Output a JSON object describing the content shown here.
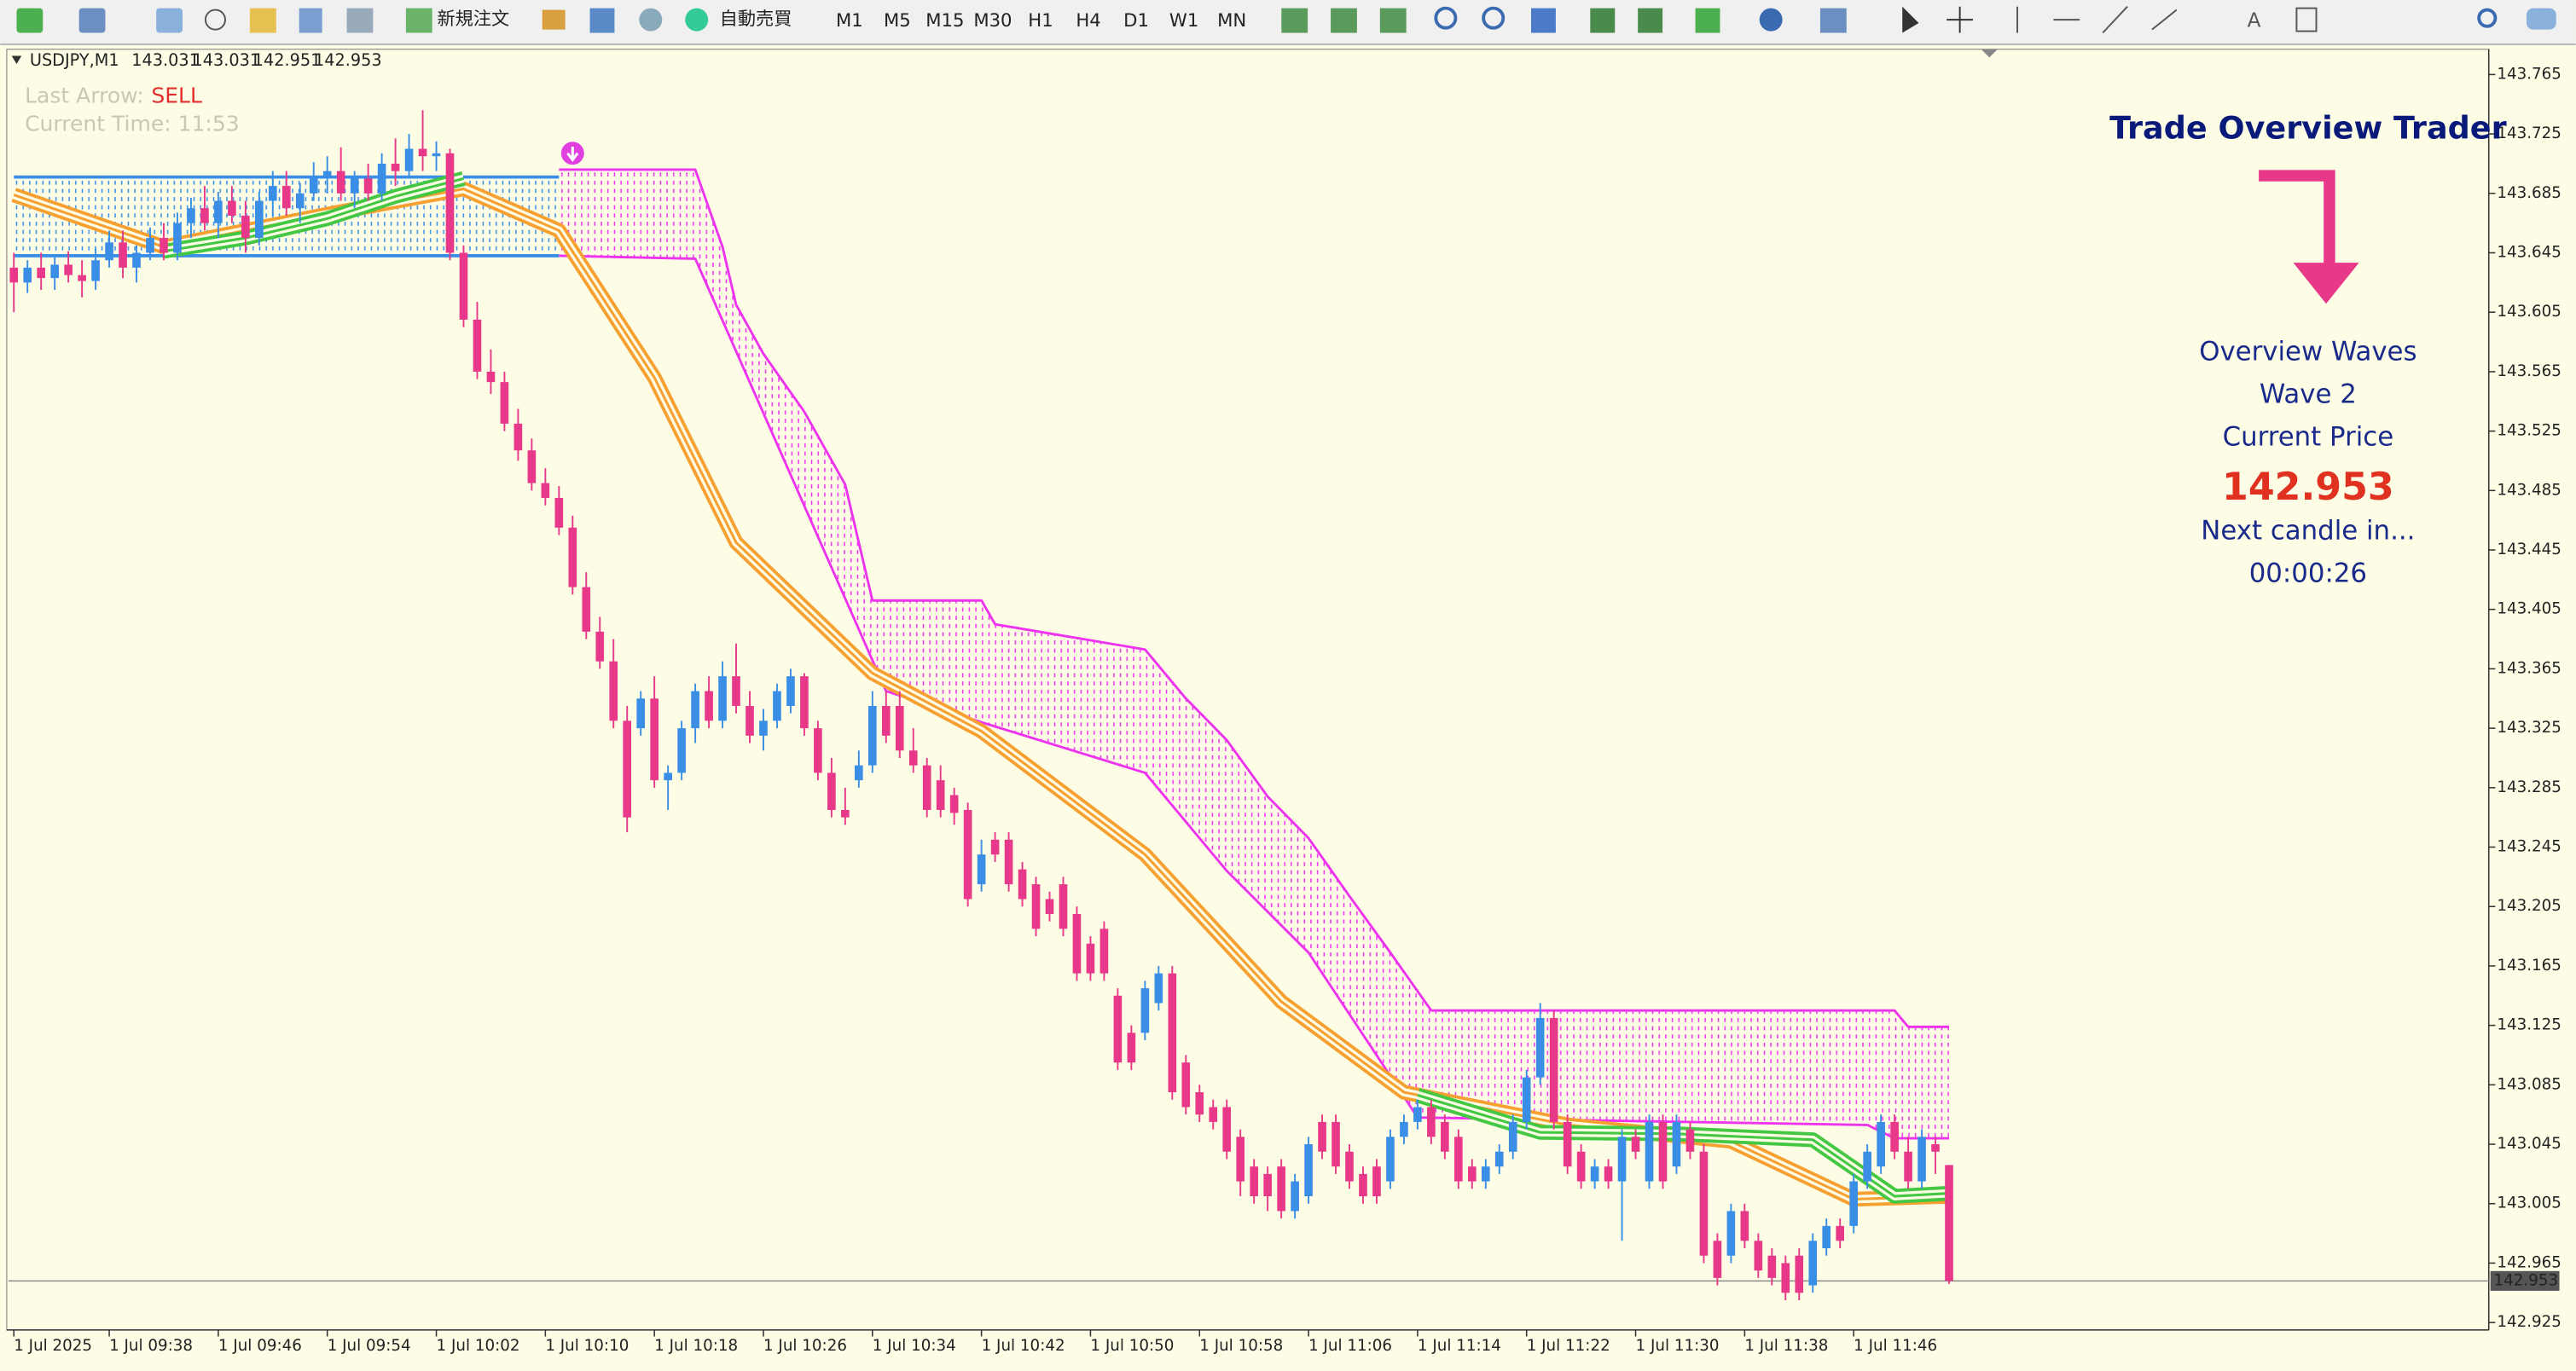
{
  "toolbar": {
    "new_order": "新規注文",
    "auto_trading": "自動売買",
    "timeframes": [
      "M1",
      "M5",
      "M15",
      "M30",
      "H1",
      "H4",
      "D1",
      "W1",
      "MN"
    ]
  },
  "chart_data": {
    "type": "candlestick",
    "title": "USDJPY,M1",
    "bull_color": "#3a8ee6",
    "bear_color": "#e8388a",
    "candles": [
      [
        143.635,
        143.645,
        143.605,
        143.625
      ],
      [
        143.625,
        143.64,
        143.618,
        143.635
      ],
      [
        143.635,
        143.645,
        143.62,
        143.628
      ],
      [
        143.628,
        143.642,
        143.62,
        143.637
      ],
      [
        143.637,
        143.646,
        143.625,
        143.63
      ],
      [
        143.63,
        143.64,
        143.615,
        143.626
      ],
      [
        143.626,
        143.648,
        143.62,
        143.64
      ],
      [
        143.64,
        143.66,
        143.635,
        143.652
      ],
      [
        143.652,
        143.66,
        143.628,
        143.635
      ],
      [
        143.635,
        143.65,
        143.625,
        143.645
      ],
      [
        143.645,
        143.662,
        143.64,
        143.655
      ],
      [
        143.655,
        143.665,
        143.64,
        143.645
      ],
      [
        143.645,
        143.672,
        143.64,
        143.665
      ],
      [
        143.665,
        143.682,
        143.655,
        143.675
      ],
      [
        143.675,
        143.69,
        143.66,
        143.665
      ],
      [
        143.665,
        143.686,
        143.655,
        143.68
      ],
      [
        143.68,
        143.69,
        143.665,
        143.67
      ],
      [
        143.67,
        143.68,
        143.645,
        143.655
      ],
      [
        143.655,
        143.686,
        143.65,
        143.68
      ],
      [
        143.68,
        143.7,
        143.67,
        143.69
      ],
      [
        143.69,
        143.7,
        143.67,
        143.675
      ],
      [
        143.675,
        143.692,
        143.665,
        143.685
      ],
      [
        143.685,
        143.706,
        143.68,
        143.695
      ],
      [
        143.695,
        143.71,
        143.685,
        143.7
      ],
      [
        143.7,
        143.716,
        143.68,
        143.685
      ],
      [
        143.685,
        143.7,
        143.675,
        143.695
      ],
      [
        143.695,
        143.705,
        143.68,
        143.685
      ],
      [
        143.685,
        143.712,
        143.68,
        143.705
      ],
      [
        143.705,
        143.722,
        143.69,
        143.7
      ],
      [
        143.7,
        143.725,
        143.695,
        143.715
      ],
      [
        143.715,
        143.741,
        143.7,
        143.71
      ],
      [
        143.71,
        143.72,
        143.7,
        143.712
      ],
      [
        143.712,
        143.715,
        143.64,
        143.645
      ],
      [
        143.645,
        143.65,
        143.595,
        143.6
      ],
      [
        143.6,
        143.612,
        143.56,
        143.565
      ],
      [
        143.565,
        143.58,
        143.55,
        143.558
      ],
      [
        143.558,
        143.565,
        143.525,
        143.53
      ],
      [
        143.53,
        143.54,
        143.505,
        143.512
      ],
      [
        143.512,
        143.52,
        143.485,
        143.49
      ],
      [
        143.49,
        143.5,
        143.475,
        143.48
      ],
      [
        143.48,
        143.488,
        143.455,
        143.46
      ],
      [
        143.46,
        143.468,
        143.415,
        143.42
      ],
      [
        143.42,
        143.43,
        143.385,
        143.39
      ],
      [
        143.39,
        143.4,
        143.365,
        143.37
      ],
      [
        143.37,
        143.385,
        143.325,
        143.33
      ],
      [
        143.33,
        143.34,
        143.255,
        143.265
      ],
      [
        143.325,
        143.35,
        143.32,
        143.345
      ],
      [
        143.345,
        143.36,
        143.285,
        143.29
      ],
      [
        143.29,
        143.3,
        143.27,
        143.295
      ],
      [
        143.295,
        143.33,
        143.29,
        143.325
      ],
      [
        143.325,
        143.355,
        143.315,
        143.35
      ],
      [
        143.35,
        143.36,
        143.325,
        143.33
      ],
      [
        143.33,
        143.37,
        143.325,
        143.36
      ],
      [
        143.36,
        143.382,
        143.335,
        143.34
      ],
      [
        143.34,
        143.35,
        143.315,
        143.32
      ],
      [
        143.32,
        143.338,
        143.31,
        143.33
      ],
      [
        143.33,
        143.355,
        143.325,
        143.35
      ],
      [
        143.34,
        143.365,
        143.335,
        143.36
      ],
      [
        143.36,
        143.362,
        143.32,
        143.325
      ],
      [
        143.325,
        143.33,
        143.29,
        143.295
      ],
      [
        143.295,
        143.305,
        143.265,
        143.27
      ],
      [
        143.27,
        143.285,
        143.26,
        143.265
      ],
      [
        143.29,
        143.31,
        143.285,
        143.3
      ],
      [
        143.3,
        143.35,
        143.295,
        143.34
      ],
      [
        143.34,
        143.35,
        143.315,
        143.32
      ],
      [
        143.34,
        143.35,
        143.305,
        143.31
      ],
      [
        143.31,
        143.325,
        143.295,
        143.3
      ],
      [
        143.3,
        143.305,
        143.265,
        143.27
      ],
      [
        143.29,
        143.3,
        143.265,
        143.27
      ],
      [
        143.28,
        143.285,
        143.26,
        143.268
      ],
      [
        143.27,
        143.275,
        143.205,
        143.21
      ],
      [
        143.22,
        143.25,
        143.215,
        143.24
      ],
      [
        143.25,
        143.255,
        143.235,
        143.24
      ],
      [
        143.25,
        143.255,
        143.215,
        143.22
      ],
      [
        143.23,
        143.235,
        143.205,
        143.21
      ],
      [
        143.22,
        143.225,
        143.185,
        143.19
      ],
      [
        143.21,
        143.215,
        143.195,
        143.2
      ],
      [
        143.22,
        143.225,
        143.185,
        143.19
      ],
      [
        143.2,
        143.205,
        143.155,
        143.16
      ],
      [
        143.18,
        143.185,
        143.155,
        143.16
      ],
      [
        143.19,
        143.195,
        143.155,
        143.16
      ],
      [
        143.145,
        143.15,
        143.095,
        143.1
      ],
      [
        143.12,
        143.125,
        143.095,
        143.1
      ],
      [
        143.12,
        143.155,
        143.115,
        143.15
      ],
      [
        143.14,
        143.165,
        143.135,
        143.16
      ],
      [
        143.16,
        143.165,
        143.075,
        143.08
      ],
      [
        143.1,
        143.105,
        143.065,
        143.07
      ],
      [
        143.08,
        143.085,
        143.06,
        143.065
      ],
      [
        143.07,
        143.075,
        143.055,
        143.06
      ],
      [
        143.07,
        143.075,
        143.035,
        143.04
      ],
      [
        143.05,
        143.055,
        143.01,
        143.02
      ],
      [
        143.03,
        143.035,
        143.005,
        143.01
      ],
      [
        143.025,
        143.03,
        143.0,
        143.01
      ],
      [
        143.03,
        143.035,
        142.995,
        143.0
      ],
      [
        143.0,
        143.025,
        142.995,
        143.02
      ],
      [
        143.01,
        143.05,
        143.005,
        143.045
      ],
      [
        143.06,
        143.065,
        143.035,
        143.04
      ],
      [
        143.06,
        143.065,
        143.025,
        143.03
      ],
      [
        143.04,
        143.045,
        143.015,
        143.02
      ],
      [
        143.025,
        143.03,
        143.005,
        143.01
      ],
      [
        143.03,
        143.035,
        143.005,
        143.01
      ],
      [
        143.02,
        143.055,
        143.015,
        143.05
      ],
      [
        143.05,
        143.065,
        143.045,
        143.06
      ],
      [
        143.06,
        143.075,
        143.055,
        143.07
      ],
      [
        143.07,
        143.075,
        143.045,
        143.05
      ],
      [
        143.06,
        143.065,
        143.035,
        143.04
      ],
      [
        143.05,
        143.055,
        143.015,
        143.02
      ],
      [
        143.03,
        143.035,
        143.015,
        143.02
      ],
      [
        143.02,
        143.035,
        143.015,
        143.03
      ],
      [
        143.03,
        143.045,
        143.025,
        143.04
      ],
      [
        143.04,
        143.065,
        143.035,
        143.06
      ],
      [
        143.06,
        143.095,
        143.055,
        143.09
      ],
      [
        143.09,
        143.14,
        143.085,
        143.13
      ],
      [
        143.13,
        143.135,
        143.055,
        143.06
      ],
      [
        143.06,
        143.065,
        143.025,
        143.03
      ],
      [
        143.04,
        143.045,
        143.015,
        143.02
      ],
      [
        143.02,
        143.035,
        143.015,
        143.03
      ],
      [
        143.03,
        143.035,
        143.015,
        143.02
      ],
      [
        143.02,
        143.055,
        142.98,
        143.05
      ],
      [
        143.05,
        143.055,
        143.035,
        143.04
      ],
      [
        143.02,
        143.065,
        143.015,
        143.06
      ],
      [
        143.06,
        143.065,
        143.015,
        143.02
      ],
      [
        143.03,
        143.065,
        143.025,
        143.06
      ],
      [
        143.055,
        143.06,
        143.035,
        143.04
      ],
      [
        143.04,
        143.045,
        142.965,
        142.97
      ],
      [
        142.98,
        142.985,
        142.95,
        142.955
      ],
      [
        142.97,
        143.005,
        142.965,
        143.0
      ],
      [
        143.0,
        143.005,
        142.975,
        142.98
      ],
      [
        142.98,
        142.985,
        142.955,
        142.96
      ],
      [
        142.97,
        142.975,
        142.95,
        142.955
      ],
      [
        142.965,
        142.97,
        142.94,
        142.945
      ],
      [
        142.97,
        142.975,
        142.94,
        142.945
      ],
      [
        142.95,
        142.985,
        142.945,
        142.98
      ],
      [
        142.975,
        142.995,
        142.97,
        142.99
      ],
      [
        142.99,
        142.995,
        142.975,
        142.98
      ],
      [
        142.99,
        143.025,
        142.985,
        143.02
      ],
      [
        143.02,
        143.045,
        143.015,
        143.04
      ],
      [
        143.03,
        143.065,
        143.025,
        143.06
      ],
      [
        143.06,
        143.065,
        143.035,
        143.04
      ],
      [
        143.04,
        143.05,
        143.015,
        143.02
      ],
      [
        143.02,
        143.055,
        143.015,
        143.05
      ],
      [
        143.045,
        143.05,
        143.025,
        143.04
      ],
      [
        143.031,
        143.031,
        142.951,
        142.953
      ]
    ],
    "xlim": [
      -0.4,
      181.6
    ],
    "xticks": [
      {
        "value": 0,
        "label": "1 Jul 2025"
      },
      {
        "value": 7,
        "label": "1 Jul 09:38"
      },
      {
        "value": 15,
        "label": "1 Jul 09:46"
      },
      {
        "value": 23,
        "label": "1 Jul 09:54"
      },
      {
        "value": 31,
        "label": "1 Jul 10:02"
      },
      {
        "value": 39,
        "label": "1 Jul 10:10"
      },
      {
        "value": 47,
        "label": "1 Jul 10:18"
      },
      {
        "value": 55,
        "label": "1 Jul 10:26"
      },
      {
        "value": 63,
        "label": "1 Jul 10:34"
      },
      {
        "value": 71,
        "label": "1 Jul 10:42"
      },
      {
        "value": 79,
        "label": "1 Jul 10:50"
      },
      {
        "value": 87,
        "label": "1 Jul 10:58"
      },
      {
        "value": 95,
        "label": "1 Jul 11:06"
      },
      {
        "value": 103,
        "label": "1 Jul 11:14"
      },
      {
        "value": 111,
        "label": "1 Jul 11:22"
      },
      {
        "value": 119,
        "label": "1 Jul 11:30"
      },
      {
        "value": 127,
        "label": "1 Jul 11:38"
      },
      {
        "value": 135,
        "label": "1 Jul 11:46"
      }
    ],
    "ylim": [
      142.92,
      143.782
    ],
    "yticks": [
      143.765,
      143.725,
      143.685,
      143.645,
      143.605,
      143.565,
      143.525,
      143.485,
      143.445,
      143.405,
      143.365,
      143.325,
      143.285,
      143.245,
      143.205,
      143.165,
      143.125,
      143.085,
      143.045,
      143.005,
      142.965,
      142.925
    ],
    "ma_band": {
      "color": "#f5a030",
      "x": [
        0,
        11,
        23,
        33,
        40,
        47,
        53,
        63,
        71,
        83,
        93,
        102,
        114,
        126,
        135,
        142
      ],
      "values": [
        143.684,
        143.649,
        143.671,
        143.688,
        143.66,
        143.561,
        143.45,
        143.362,
        143.323,
        143.24,
        143.141,
        143.08,
        143.058,
        143.047,
        143.008,
        143.01
      ]
    },
    "signal_band": {
      "color": "#44c844",
      "x": [
        11,
        17,
        23,
        28,
        33,
        34,
        103,
        112,
        122,
        132,
        138,
        142
      ],
      "values": [
        143.646,
        143.655,
        143.668,
        143.683,
        143.695,
        null,
        143.078,
        143.053,
        143.052,
        143.048,
        143.01,
        143.012
      ]
    },
    "cloud_color": "#ee33ee",
    "cloud_upper": {
      "x": [
        40,
        50,
        52,
        53,
        55,
        58,
        61,
        63,
        71,
        72,
        83,
        86,
        89,
        92,
        95,
        98,
        101,
        104,
        138,
        139,
        142
      ],
      "values": [
        143.701,
        143.701,
        143.649,
        143.61,
        143.577,
        143.538,
        143.489,
        143.411,
        143.411,
        143.395,
        143.378,
        143.345,
        143.317,
        143.279,
        143.251,
        143.212,
        143.174,
        143.135,
        143.135,
        143.124,
        143.124
      ]
    },
    "cloud_lower": {
      "x": [
        40,
        50,
        64,
        71,
        83,
        89,
        95,
        101,
        103,
        136,
        138,
        142
      ],
      "values": [
        143.643,
        143.641,
        143.35,
        143.329,
        143.295,
        143.229,
        143.174,
        143.091,
        143.063,
        143.058,
        143.049,
        143.049
      ]
    },
    "range_box": {
      "color": "#3a8ee6",
      "x": [
        0,
        40
      ],
      "values": [
        143.696,
        143.643
      ]
    },
    "sell_arrow": {
      "color": "#e040e0",
      "x": 41,
      "value": 143.712
    }
  },
  "info": {
    "last_arrow_label": "Last Arrow:",
    "last_arrow": "SELL",
    "current_time": "Current Time: 11:53"
  },
  "panel": {
    "title": "Trade Overview Trader",
    "lines": [
      "Overview Waves",
      "Wave 2",
      "Current Price"
    ],
    "next_candle": "Next candle in...",
    "countdown": "00:00:26"
  }
}
